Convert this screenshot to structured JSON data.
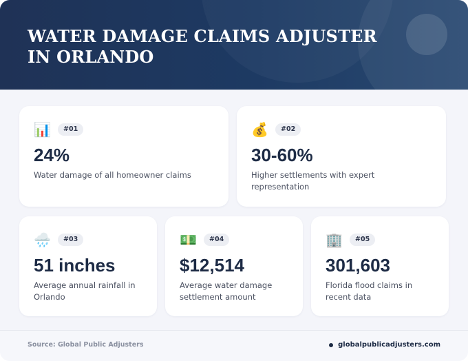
{
  "header": {
    "title": "WATER DAMAGE CLAIMS ADJUSTER IN ORLANDO"
  },
  "stats": [
    {
      "icon": "chart-icon",
      "emoji": "📊",
      "badge": "#01",
      "value": "24%",
      "description": "Water damage of all homeowner claims"
    },
    {
      "icon": "money-bag-icon",
      "emoji": "💰",
      "badge": "#02",
      "value": "30-60%",
      "description": "Higher settlements with expert representation"
    },
    {
      "icon": "rain-cloud-icon",
      "emoji": "🌧️",
      "badge": "#03",
      "value": "51 inches",
      "description": "Average annual rainfall in Orlando"
    },
    {
      "icon": "dollar-bill-icon",
      "emoji": "💵",
      "badge": "#04",
      "value": "$12,514",
      "description": "Average water damage settlement amount"
    },
    {
      "icon": "office-building-icon",
      "emoji": "🏢",
      "badge": "#05",
      "value": "301,603",
      "description": "Florida flood claims in recent data"
    }
  ],
  "footer": {
    "source": "Source: Global Public Adjusters",
    "website": "globalpublicadjusters.com"
  },
  "colors": {
    "header_bg": "#1f3256",
    "value_text": "#1d2b45",
    "card_bg": "#ffffff",
    "page_bg": "#f4f5fa"
  }
}
